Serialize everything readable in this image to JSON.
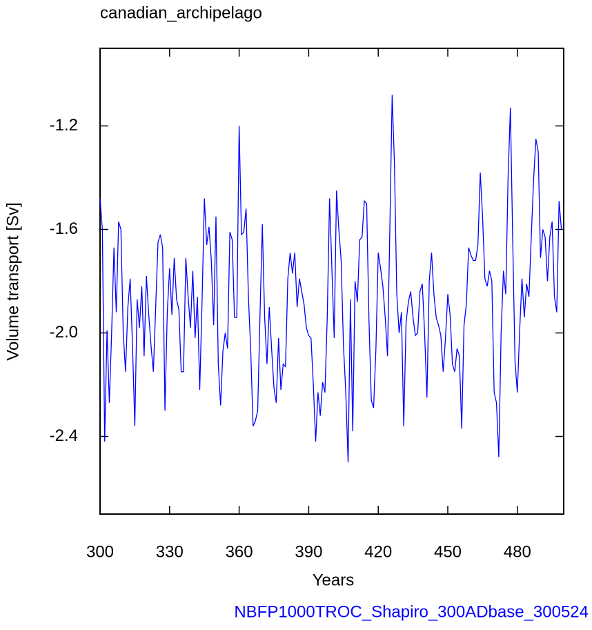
{
  "chart_data": {
    "type": "line",
    "title": "canadian_archipelago",
    "x_label": "Years",
    "y_label": "Volume transport [Sv]",
    "annotation": "NBFP1000TROC_Shapiro_300ADbase_300524",
    "xlim": [
      300,
      500
    ],
    "ylim": [
      -2.7,
      -0.9
    ],
    "xticks": [
      300,
      330,
      360,
      390,
      420,
      450,
      480
    ],
    "yticks": [
      {
        "value": -2.4,
        "label": "-2.4"
      },
      {
        "value": -2.0,
        "label": "-2.0"
      },
      {
        "value": -1.6,
        "label": "-1.6"
      },
      {
        "value": -1.2,
        "label": "-1.2"
      }
    ],
    "x": [
      300,
      301,
      302,
      303,
      304,
      305,
      306,
      307,
      308,
      309,
      310,
      311,
      312,
      313,
      314,
      315,
      316,
      317,
      318,
      319,
      320,
      321,
      322,
      323,
      324,
      325,
      326,
      327,
      328,
      329,
      330,
      331,
      332,
      333,
      334,
      335,
      336,
      337,
      338,
      339,
      340,
      341,
      342,
      343,
      344,
      345,
      346,
      347,
      348,
      349,
      350,
      351,
      352,
      353,
      354,
      355,
      356,
      357,
      358,
      359,
      360,
      361,
      362,
      363,
      364,
      365,
      366,
      367,
      368,
      369,
      370,
      371,
      372,
      373,
      374,
      375,
      376,
      377,
      378,
      379,
      380,
      381,
      382,
      383,
      384,
      385,
      386,
      387,
      388,
      389,
      390,
      391,
      392,
      393,
      394,
      395,
      396,
      397,
      398,
      399,
      400,
      401,
      402,
      403,
      404,
      405,
      406,
      407,
      408,
      409,
      410,
      411,
      412,
      413,
      414,
      415,
      416,
      417,
      418,
      419,
      420,
      421,
      422,
      423,
      424,
      425,
      426,
      427,
      428,
      429,
      430,
      431,
      432,
      433,
      434,
      435,
      436,
      437,
      438,
      439,
      440,
      441,
      442,
      443,
      444,
      445,
      446,
      447,
      448,
      449,
      450,
      451,
      452,
      453,
      454,
      455,
      456,
      457,
      458,
      459,
      460,
      461,
      462,
      463,
      464,
      465,
      466,
      467,
      468,
      469,
      470,
      471,
      472,
      473,
      474,
      475,
      476,
      477,
      478,
      479,
      480,
      481,
      482,
      483,
      484,
      485,
      486,
      487,
      488,
      489,
      490,
      491,
      492,
      493,
      494,
      495,
      496,
      497,
      498,
      499
    ],
    "series": [
      {
        "color": "#0000ff",
        "values": [
          -1.48,
          -1.6,
          -2.42,
          -1.99,
          -2.27,
          -2.0,
          -1.67,
          -1.92,
          -1.57,
          -1.6,
          -2.0,
          -2.15,
          -1.9,
          -1.79,
          -2.05,
          -2.36,
          -1.87,
          -1.98,
          -1.82,
          -2.09,
          -1.78,
          -1.93,
          -2.05,
          -2.15,
          -1.9,
          -1.65,
          -1.62,
          -1.67,
          -2.3,
          -1.92,
          -1.75,
          -1.93,
          -1.71,
          -1.87,
          -1.91,
          -2.15,
          -2.15,
          -1.71,
          -1.86,
          -1.98,
          -1.76,
          -2.02,
          -1.86,
          -2.22,
          -1.88,
          -1.48,
          -1.66,
          -1.59,
          -1.72,
          -1.97,
          -1.55,
          -2.12,
          -2.28,
          -2.07,
          -2.0,
          -2.06,
          -1.61,
          -1.64,
          -1.94,
          -1.94,
          -1.2,
          -1.62,
          -1.61,
          -1.52,
          -1.86,
          -2.07,
          -2.36,
          -2.34,
          -2.3,
          -1.93,
          -1.58,
          -1.94,
          -2.12,
          -1.9,
          -2.06,
          -2.21,
          -2.27,
          -2.02,
          -2.22,
          -2.12,
          -2.13,
          -1.79,
          -1.69,
          -1.77,
          -1.69,
          -1.9,
          -1.79,
          -1.84,
          -1.89,
          -1.98,
          -2.01,
          -2.02,
          -2.2,
          -2.42,
          -2.23,
          -2.32,
          -2.19,
          -2.23,
          -1.94,
          -1.48,
          -1.75,
          -2.02,
          -1.45,
          -1.6,
          -1.72,
          -2.05,
          -2.23,
          -2.5,
          -1.87,
          -2.38,
          -1.8,
          -1.88,
          -1.64,
          -1.63,
          -1.49,
          -1.5,
          -1.95,
          -2.26,
          -2.29,
          -2.06,
          -1.69,
          -1.75,
          -1.82,
          -1.94,
          -2.09,
          -1.6,
          -1.08,
          -1.35,
          -1.85,
          -2.0,
          -1.92,
          -2.36,
          -1.96,
          -1.88,
          -1.84,
          -1.94,
          -2.01,
          -2.0,
          -1.84,
          -1.81,
          -2.0,
          -2.25,
          -1.8,
          -1.69,
          -1.85,
          -1.94,
          -1.97,
          -2.01,
          -2.15,
          -2.02,
          -1.85,
          -1.93,
          -2.12,
          -2.15,
          -2.06,
          -2.09,
          -2.37,
          -1.97,
          -1.89,
          -1.67,
          -1.7,
          -1.72,
          -1.72,
          -1.66,
          -1.38,
          -1.55,
          -1.79,
          -1.82,
          -1.76,
          -1.8,
          -2.23,
          -2.27,
          -2.48,
          -2.0,
          -1.76,
          -1.85,
          -1.4,
          -1.13,
          -1.64,
          -2.11,
          -2.23,
          -1.99,
          -1.79,
          -1.94,
          -1.81,
          -1.86,
          -1.63,
          -1.41,
          -1.25,
          -1.3,
          -1.71,
          -1.6,
          -1.63,
          -1.8,
          -1.63,
          -1.57,
          -1.86,
          -1.92,
          -1.49,
          -1.6
        ]
      }
    ]
  }
}
